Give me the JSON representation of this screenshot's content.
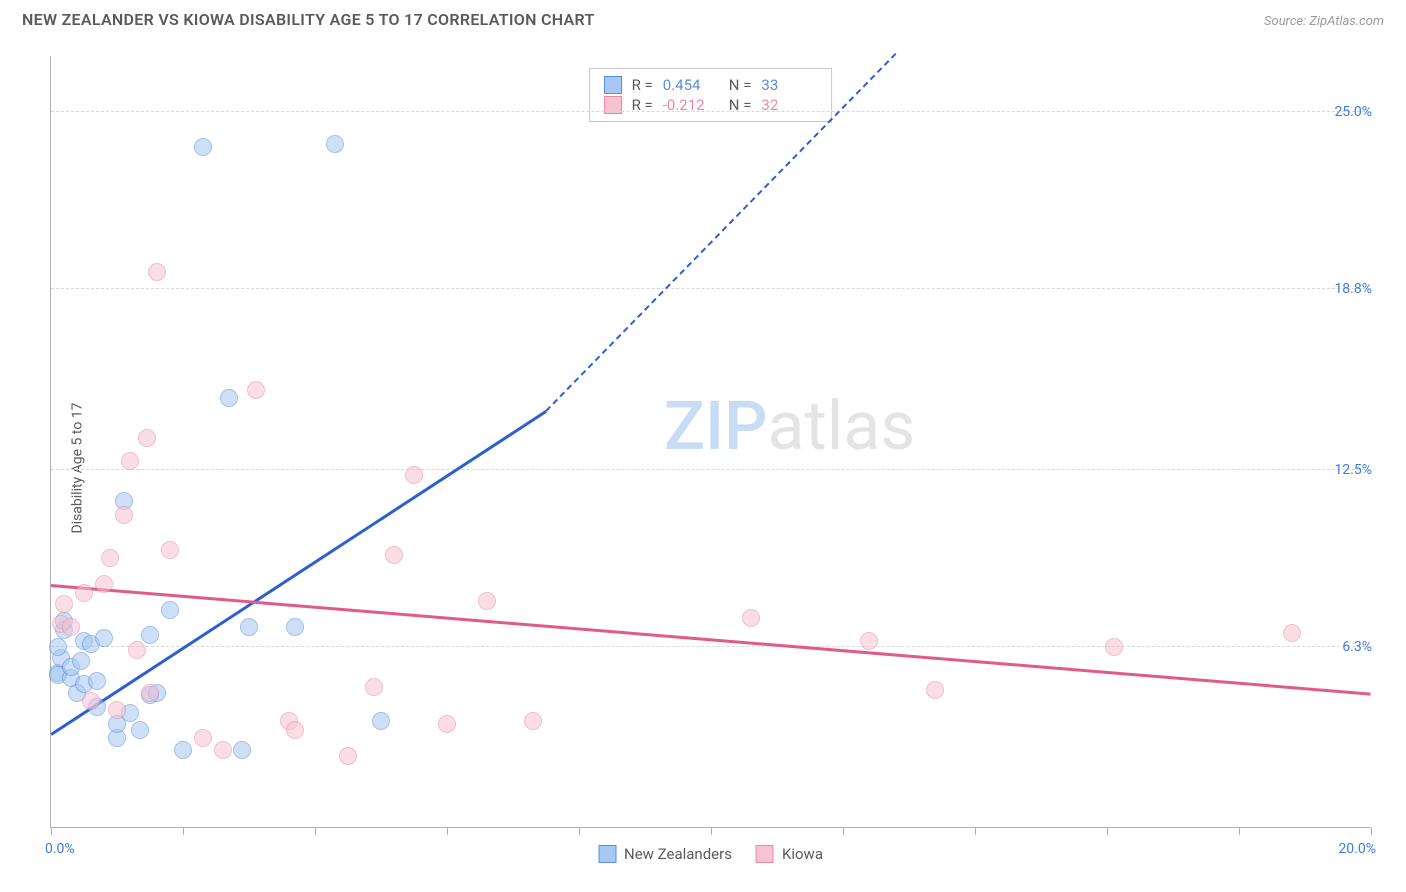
{
  "title": "NEW ZEALANDER VS KIOWA DISABILITY AGE 5 TO 17 CORRELATION CHART",
  "source": "Source: ZipAtlas.com",
  "ylabel": "Disability Age 5 to 17",
  "watermark_prefix": "ZIP",
  "watermark_suffix": "atlas",
  "chart": {
    "type": "scatter",
    "background_color": "#ffffff",
    "grid_color": "#d8d8d8",
    "axis_color": "#b0b0b0",
    "tick_label_color": "#3b7dd8",
    "xlim": [
      0.0,
      20.0
    ],
    "ylim": [
      0.0,
      27.0
    ],
    "ytick_values": [
      6.3,
      12.5,
      18.8,
      25.0
    ],
    "ytick_labels": [
      "6.3%",
      "12.5%",
      "18.8%",
      "25.0%"
    ],
    "xtick_values": [
      0,
      2,
      4,
      6,
      8,
      10,
      12,
      14,
      16,
      18,
      20
    ],
    "xlabel_min": "0.0%",
    "xlabel_max": "20.0%",
    "marker_radius": 9,
    "marker_opacity": 0.55,
    "marker_border_opacity": 0.9
  },
  "series": [
    {
      "name": "New Zealanders",
      "fill_color": "#a7c8f2",
      "stroke_color": "#5a8fd6",
      "line_color": "#2d5fd0",
      "R": "0.454",
      "N": "33",
      "trend": {
        "x1": 0.0,
        "y1": 3.2,
        "x2": 7.5,
        "y2": 14.5,
        "dash_to_x": 12.8,
        "dash_to_y": 27.0
      },
      "points": [
        [
          0.1,
          5.4
        ],
        [
          0.2,
          6.9
        ],
        [
          0.2,
          7.2
        ],
        [
          0.15,
          5.9
        ],
        [
          0.1,
          5.3
        ],
        [
          0.3,
          5.2
        ],
        [
          0.3,
          5.6
        ],
        [
          0.4,
          4.7
        ],
        [
          0.45,
          5.8
        ],
        [
          0.5,
          6.5
        ],
        [
          0.5,
          5.0
        ],
        [
          0.6,
          6.4
        ],
        [
          0.7,
          4.2
        ],
        [
          0.7,
          5.1
        ],
        [
          0.8,
          6.6
        ],
        [
          1.0,
          3.1
        ],
        [
          1.0,
          3.6
        ],
        [
          1.1,
          11.4
        ],
        [
          1.2,
          4.0
        ],
        [
          1.35,
          3.4
        ],
        [
          1.5,
          6.7
        ],
        [
          1.5,
          4.6
        ],
        [
          1.6,
          4.7
        ],
        [
          1.8,
          7.6
        ],
        [
          2.0,
          2.7
        ],
        [
          2.3,
          23.8
        ],
        [
          2.7,
          15.0
        ],
        [
          2.9,
          2.7
        ],
        [
          3.0,
          7.0
        ],
        [
          3.7,
          7.0
        ],
        [
          4.3,
          23.9
        ],
        [
          5.0,
          3.7
        ],
        [
          0.1,
          6.3
        ]
      ]
    },
    {
      "name": "Kiowa",
      "fill_color": "#f6c3d1",
      "stroke_color": "#e98aa6",
      "line_color": "#e15a8a",
      "R": "-0.212",
      "N": "32",
      "trend": {
        "x1": 0.0,
        "y1": 8.4,
        "x2": 20.0,
        "y2": 4.6
      },
      "points": [
        [
          0.15,
          7.1
        ],
        [
          0.2,
          7.8
        ],
        [
          0.3,
          7.0
        ],
        [
          0.5,
          8.2
        ],
        [
          0.6,
          4.4
        ],
        [
          0.8,
          8.5
        ],
        [
          0.9,
          9.4
        ],
        [
          1.0,
          4.1
        ],
        [
          1.1,
          10.9
        ],
        [
          1.2,
          12.8
        ],
        [
          1.3,
          6.2
        ],
        [
          1.45,
          13.6
        ],
        [
          1.5,
          4.7
        ],
        [
          1.6,
          19.4
        ],
        [
          1.8,
          9.7
        ],
        [
          2.3,
          3.1
        ],
        [
          2.6,
          2.7
        ],
        [
          3.1,
          15.3
        ],
        [
          3.6,
          3.7
        ],
        [
          3.7,
          3.4
        ],
        [
          4.5,
          2.5
        ],
        [
          4.9,
          4.9
        ],
        [
          5.2,
          9.5
        ],
        [
          5.5,
          12.3
        ],
        [
          6.0,
          3.6
        ],
        [
          6.6,
          7.9
        ],
        [
          7.3,
          3.7
        ],
        [
          10.6,
          7.3
        ],
        [
          12.4,
          6.5
        ],
        [
          13.4,
          4.8
        ],
        [
          16.1,
          6.3
        ],
        [
          18.8,
          6.8
        ]
      ]
    }
  ],
  "legend": [
    {
      "label": "New Zealanders",
      "fill": "#a7c8f2",
      "stroke": "#5a8fd6"
    },
    {
      "label": "Kiowa",
      "fill": "#f6c3d1",
      "stroke": "#e98aa6"
    }
  ]
}
